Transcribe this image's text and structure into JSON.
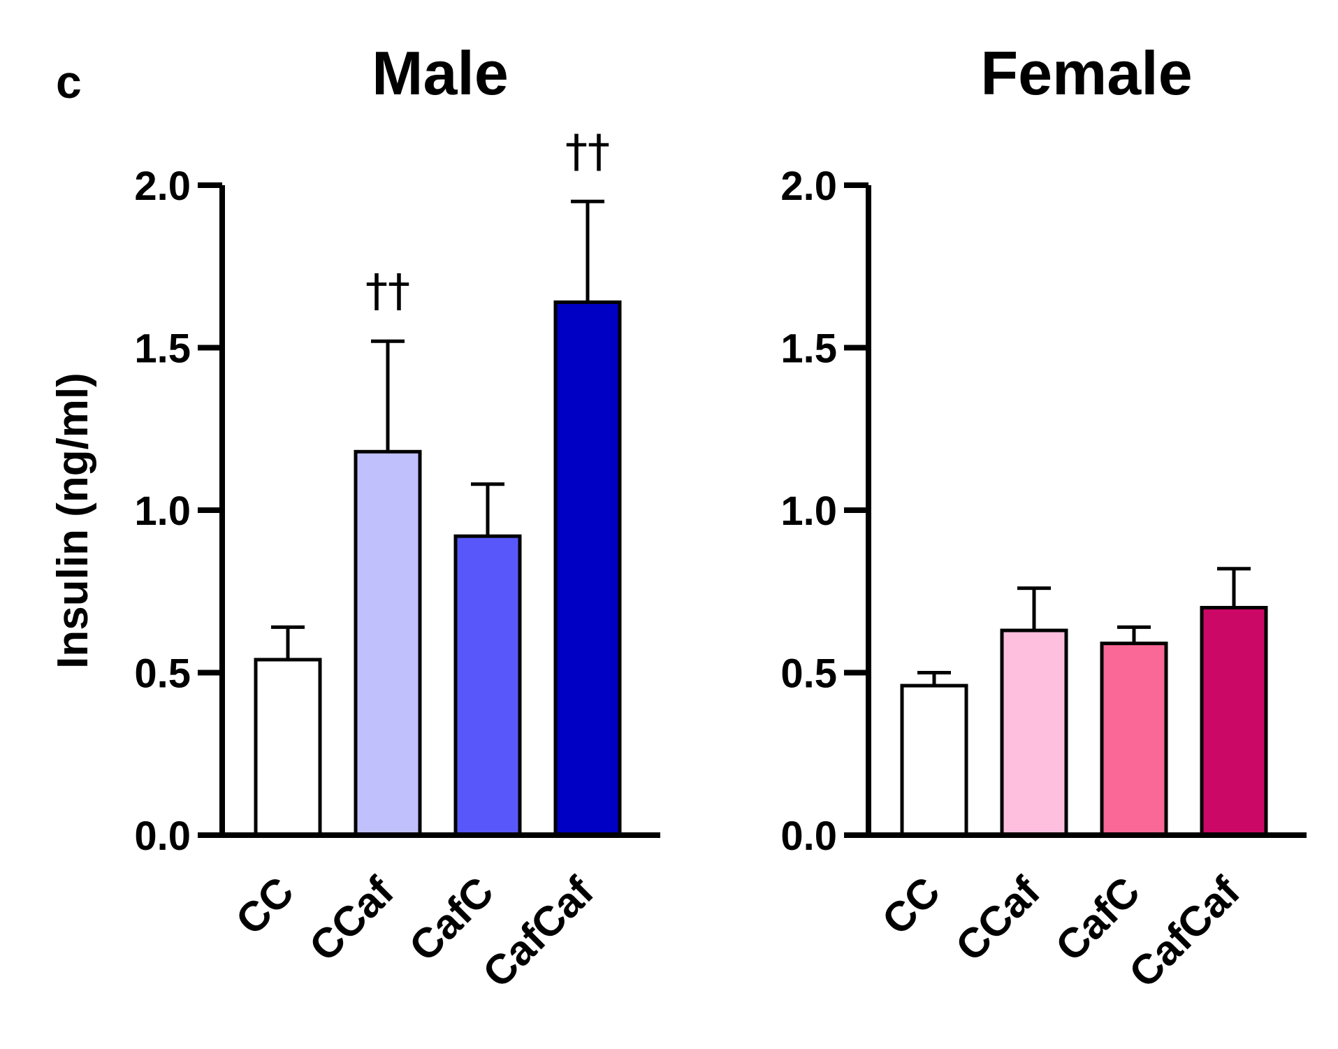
{
  "panel_letter": "c",
  "chart_data": [
    {
      "type": "bar",
      "title": "Male",
      "xlabel": "",
      "ylabel": "Insulin (ng/ml)",
      "ylim": [
        0,
        2.0
      ],
      "yticks": [
        0.0,
        0.5,
        1.0,
        1.5,
        2.0
      ],
      "ytick_labels": [
        "0.0",
        "0.5",
        "1.0",
        "1.5",
        "2.0"
      ],
      "categories": [
        "CC",
        "CCaf",
        "CafC",
        "CafCaf"
      ],
      "values": [
        0.54,
        1.18,
        0.92,
        1.64
      ],
      "error_upper": [
        0.64,
        1.52,
        1.08,
        1.95
      ],
      "colors": [
        "#ffffff",
        "#c0c0fd",
        "#5858fa",
        "#0000c4"
      ],
      "annotations": [
        "",
        "††",
        "",
        "††"
      ],
      "grid": false,
      "legend": "none"
    },
    {
      "type": "bar",
      "title": "Female",
      "xlabel": "",
      "ylabel": "",
      "ylim": [
        0,
        2.0
      ],
      "yticks": [
        0.0,
        0.5,
        1.0,
        1.5,
        2.0
      ],
      "ytick_labels": [
        "0.0",
        "0.5",
        "1.0",
        "1.5",
        "2.0"
      ],
      "categories": [
        "CC",
        "CCaf",
        "CafC",
        "CafCaf"
      ],
      "values": [
        0.46,
        0.63,
        0.59,
        0.7
      ],
      "error_upper": [
        0.5,
        0.76,
        0.64,
        0.82
      ],
      "colors": [
        "#ffffff",
        "#febfdf",
        "#f96897",
        "#cc0866"
      ],
      "annotations": [
        "",
        "",
        "",
        ""
      ],
      "grid": false,
      "legend": "none"
    }
  ]
}
